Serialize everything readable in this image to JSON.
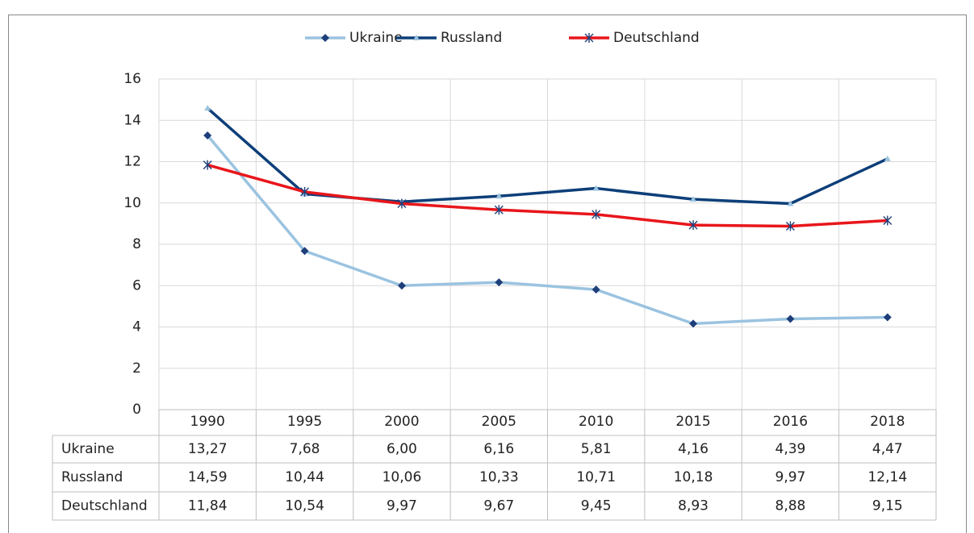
{
  "chart_data": {
    "type": "line",
    "categories": [
      "1990",
      "1995",
      "2000",
      "2005",
      "2010",
      "2015",
      "2016",
      "2018"
    ],
    "series": [
      {
        "name": "Ukraine",
        "color": "#9ac3e0",
        "marker": "diamond",
        "marker_color": "#1f3f7a",
        "values": [
          13.27,
          7.68,
          6.0,
          6.16,
          5.81,
          4.16,
          4.39,
          4.47
        ],
        "value_labels": [
          "13,27",
          "7,68",
          "6,00",
          "6,16",
          "5,81",
          "4,16",
          "4,39",
          "4,47"
        ]
      },
      {
        "name": "Russland",
        "color": "#0d3f79",
        "marker": "triangle",
        "marker_color": "#9ac3e0",
        "values": [
          14.59,
          10.44,
          10.06,
          10.33,
          10.71,
          10.18,
          9.97,
          12.14
        ],
        "value_labels": [
          "14,59",
          "10,44",
          "10,06",
          "10,33",
          "10,71",
          "10,18",
          "9,97",
          "12,14"
        ]
      },
      {
        "name": "Deutschland",
        "color": "#e8161b",
        "marker": "asterisk",
        "marker_color": "#1f3f7a",
        "values": [
          11.84,
          10.54,
          9.97,
          9.67,
          9.45,
          8.93,
          8.88,
          9.15
        ],
        "value_labels": [
          "11,84",
          "10,54",
          "9,97",
          "9,67",
          "9,45",
          "8,93",
          "8,88",
          "9,15"
        ]
      }
    ],
    "ylim": [
      0,
      16
    ],
    "yticks": [
      0,
      2,
      4,
      6,
      8,
      10,
      12,
      14,
      16
    ],
    "grid": true,
    "legend": "top"
  }
}
